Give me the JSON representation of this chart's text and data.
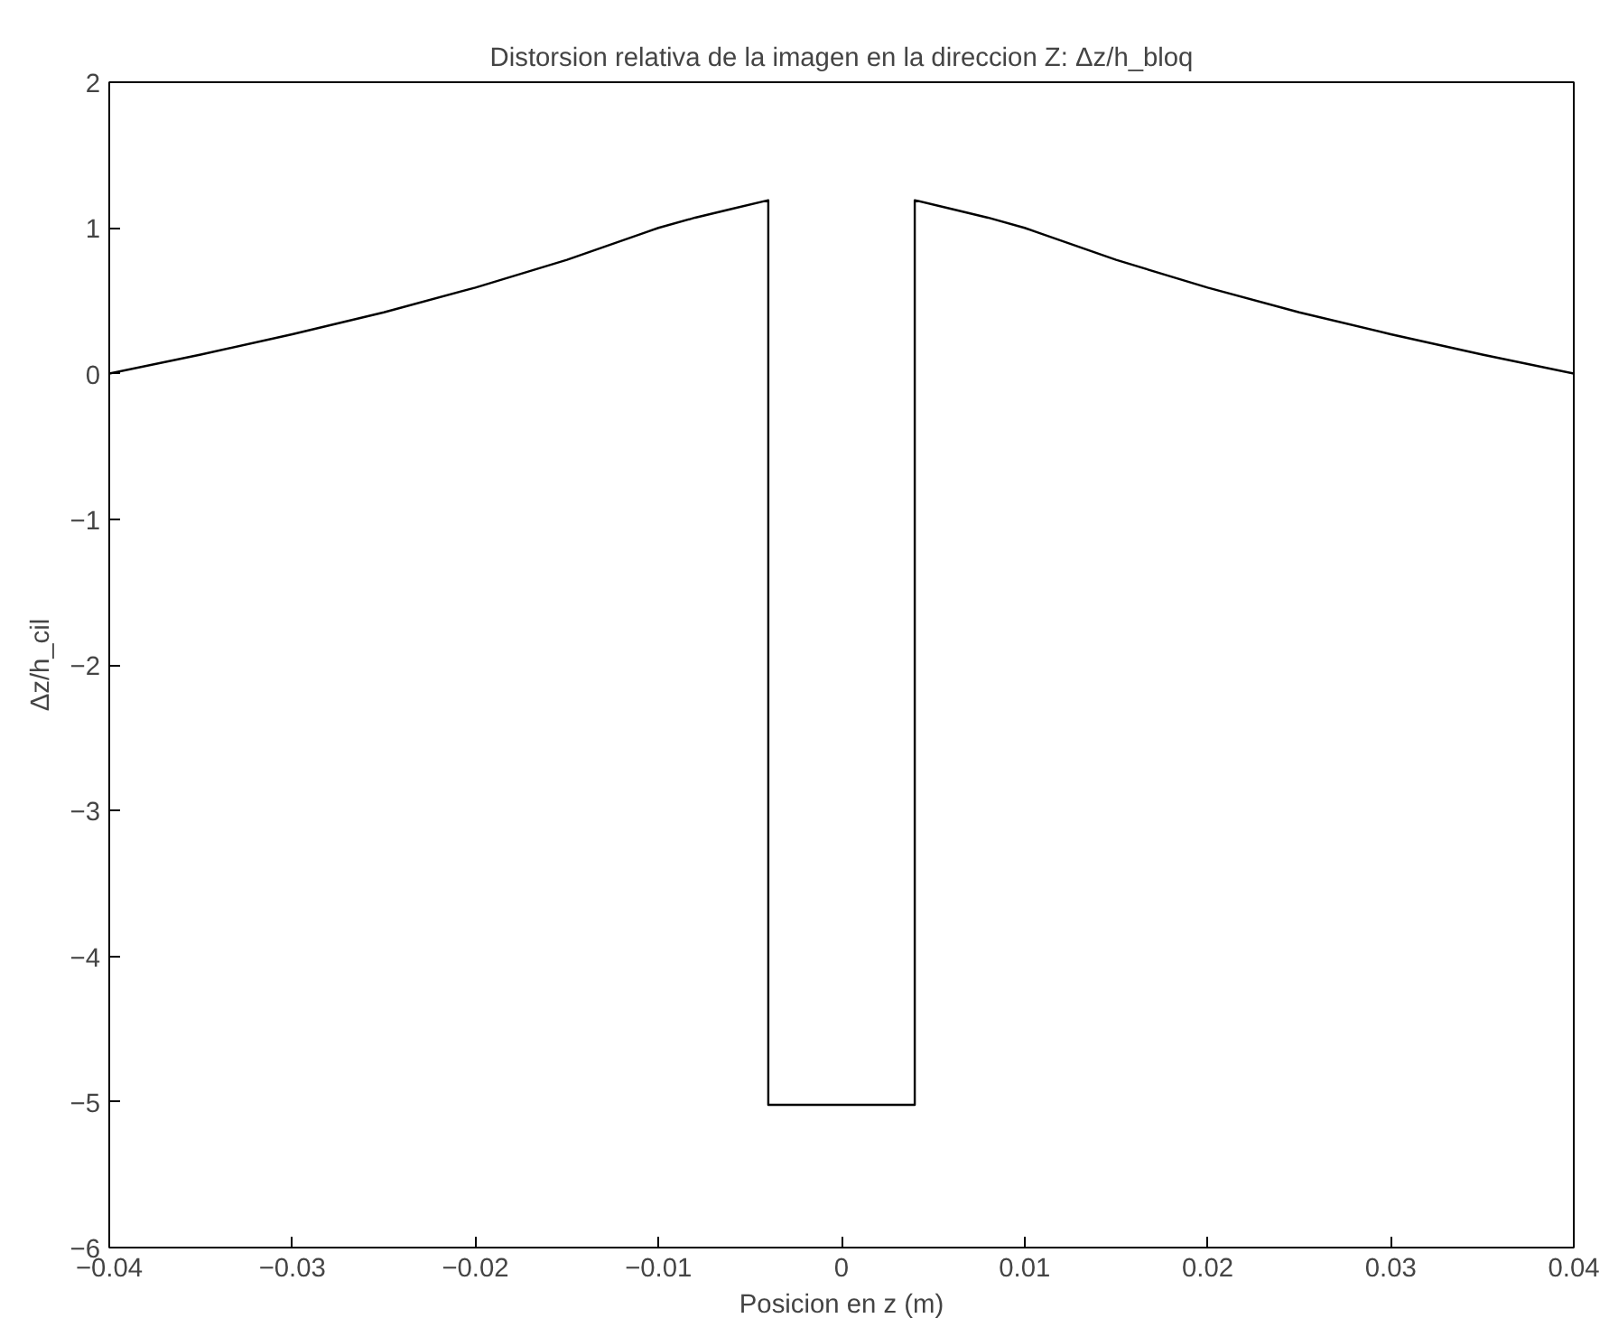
{
  "chart_data": {
    "type": "line",
    "title": "Distorsion relativa de la imagen en la direccion Z: Δz/h_bloq",
    "xlabel": "Posicion en z (m)",
    "ylabel": "Δz/h_cil",
    "x": [
      -0.04,
      -0.035,
      -0.03,
      -0.025,
      -0.02,
      -0.015,
      -0.01,
      -0.008,
      -0.006,
      -0.004,
      -0.004,
      0.004,
      0.004,
      0.006,
      0.008,
      0.01,
      0.015,
      0.02,
      0.025,
      0.03,
      0.035,
      0.04
    ],
    "series": [
      {
        "color": "#000000",
        "values": [
          0.0,
          0.13,
          0.27,
          0.42,
          0.59,
          0.78,
          1.0,
          1.07,
          1.13,
          1.19,
          -5.02,
          -5.02,
          1.19,
          1.13,
          1.07,
          1.0,
          0.78,
          0.59,
          0.42,
          0.27,
          0.13,
          0.0
        ]
      }
    ],
    "xlim": [
      -0.04,
      0.04
    ],
    "ylim": [
      -6,
      2
    ],
    "xticks": [
      -0.04,
      -0.03,
      -0.02,
      -0.01,
      0,
      0.01,
      0.02,
      0.03,
      0.04
    ],
    "yticks": [
      -6,
      -5,
      -4,
      -3,
      -2,
      -1,
      0,
      1,
      2
    ],
    "marker": "none",
    "line_style": "solid"
  }
}
